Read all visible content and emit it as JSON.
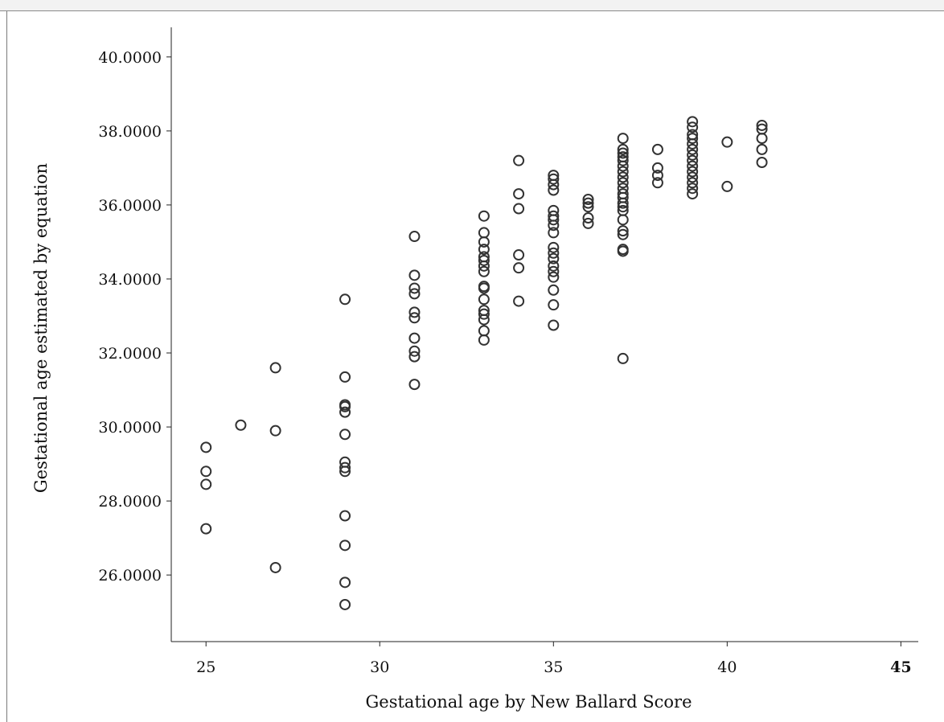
{
  "chart_data": {
    "type": "scatter",
    "title": "",
    "xlabel": "Gestational age by New Ballard Score",
    "ylabel": "Gestational age estimated by equation",
    "xlim": [
      24,
      45.5
    ],
    "ylim": [
      24.2,
      40.8
    ],
    "grid": false,
    "legend": "none",
    "marker_color": "#333333",
    "x_ticks": [
      {
        "value": 25,
        "label": "25",
        "bold": false
      },
      {
        "value": 30,
        "label": "30",
        "bold": false
      },
      {
        "value": 35,
        "label": "35",
        "bold": false
      },
      {
        "value": 40,
        "label": "40",
        "bold": false
      },
      {
        "value": 45,
        "label": "45",
        "bold": true
      }
    ],
    "y_ticks": [
      {
        "value": 26,
        "label": "26.0000"
      },
      {
        "value": 28,
        "label": "28.0000"
      },
      {
        "value": 30,
        "label": "30.0000"
      },
      {
        "value": 32,
        "label": "32.0000"
      },
      {
        "value": 34,
        "label": "34.0000"
      },
      {
        "value": 36,
        "label": "36.0000"
      },
      {
        "value": 38,
        "label": "38.0000"
      },
      {
        "value": 40,
        "label": "40.0000"
      }
    ],
    "points": [
      [
        25,
        29.45
      ],
      [
        25,
        28.8
      ],
      [
        25,
        28.45
      ],
      [
        25,
        27.25
      ],
      [
        26,
        30.05
      ],
      [
        27,
        31.6
      ],
      [
        27,
        29.9
      ],
      [
        27,
        26.2
      ],
      [
        29,
        33.45
      ],
      [
        29,
        31.35
      ],
      [
        29,
        30.6
      ],
      [
        29,
        30.55
      ],
      [
        29,
        30.4
      ],
      [
        29,
        29.8
      ],
      [
        29,
        29.05
      ],
      [
        29,
        28.9
      ],
      [
        29,
        28.8
      ],
      [
        29,
        27.6
      ],
      [
        29,
        26.8
      ],
      [
        29,
        25.8
      ],
      [
        29,
        25.2
      ],
      [
        31,
        35.15
      ],
      [
        31,
        34.1
      ],
      [
        31,
        33.75
      ],
      [
        31,
        33.6
      ],
      [
        31,
        33.1
      ],
      [
        31,
        32.95
      ],
      [
        31,
        32.4
      ],
      [
        31,
        32.05
      ],
      [
        31,
        31.9
      ],
      [
        31,
        31.15
      ],
      [
        33,
        35.7
      ],
      [
        33,
        35.25
      ],
      [
        33,
        35.0
      ],
      [
        33,
        34.8
      ],
      [
        33,
        34.6
      ],
      [
        33,
        34.5
      ],
      [
        33,
        34.35
      ],
      [
        33,
        34.2
      ],
      [
        33,
        33.8
      ],
      [
        33,
        33.75
      ],
      [
        33,
        33.45
      ],
      [
        33,
        33.15
      ],
      [
        33,
        33.05
      ],
      [
        33,
        32.9
      ],
      [
        33,
        32.6
      ],
      [
        33,
        32.35
      ],
      [
        34,
        37.2
      ],
      [
        34,
        36.3
      ],
      [
        34,
        35.9
      ],
      [
        34,
        34.65
      ],
      [
        34,
        34.3
      ],
      [
        34,
        33.4
      ],
      [
        35,
        36.8
      ],
      [
        35,
        36.7
      ],
      [
        35,
        36.55
      ],
      [
        35,
        36.4
      ],
      [
        35,
        35.85
      ],
      [
        35,
        35.7
      ],
      [
        35,
        35.6
      ],
      [
        35,
        35.45
      ],
      [
        35,
        35.25
      ],
      [
        35,
        34.85
      ],
      [
        35,
        34.7
      ],
      [
        35,
        34.55
      ],
      [
        35,
        34.35
      ],
      [
        35,
        34.2
      ],
      [
        35,
        34.05
      ],
      [
        35,
        33.7
      ],
      [
        35,
        33.3
      ],
      [
        35,
        32.75
      ],
      [
        36,
        36.15
      ],
      [
        36,
        36.05
      ],
      [
        36,
        35.95
      ],
      [
        36,
        35.65
      ],
      [
        36,
        35.5
      ],
      [
        37,
        37.8
      ],
      [
        37,
        37.5
      ],
      [
        37,
        37.4
      ],
      [
        37,
        37.3
      ],
      [
        37,
        37.2
      ],
      [
        37,
        37.05
      ],
      [
        37,
        36.9
      ],
      [
        37,
        36.75
      ],
      [
        37,
        36.6
      ],
      [
        37,
        36.45
      ],
      [
        37,
        36.3
      ],
      [
        37,
        36.2
      ],
      [
        37,
        36.05
      ],
      [
        37,
        35.95
      ],
      [
        37,
        35.85
      ],
      [
        37,
        35.6
      ],
      [
        37,
        35.3
      ],
      [
        37,
        35.2
      ],
      [
        37,
        34.8
      ],
      [
        37,
        34.75
      ],
      [
        37,
        31.85
      ],
      [
        38,
        37.5
      ],
      [
        38,
        37.0
      ],
      [
        38,
        36.8
      ],
      [
        38,
        36.6
      ],
      [
        39,
        38.25
      ],
      [
        39,
        38.1
      ],
      [
        39,
        37.9
      ],
      [
        39,
        37.8
      ],
      [
        39,
        37.65
      ],
      [
        39,
        37.5
      ],
      [
        39,
        37.35
      ],
      [
        39,
        37.2
      ],
      [
        39,
        37.05
      ],
      [
        39,
        36.9
      ],
      [
        39,
        36.75
      ],
      [
        39,
        36.6
      ],
      [
        39,
        36.45
      ],
      [
        39,
        36.3
      ],
      [
        40,
        37.7
      ],
      [
        40,
        36.5
      ],
      [
        41,
        38.15
      ],
      [
        41,
        38.05
      ],
      [
        41,
        37.8
      ],
      [
        41,
        37.5
      ],
      [
        41,
        37.15
      ]
    ]
  }
}
